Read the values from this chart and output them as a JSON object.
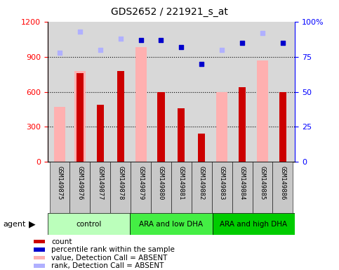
{
  "title": "GDS2652 / 221921_s_at",
  "samples": [
    "GSM149875",
    "GSM149876",
    "GSM149877",
    "GSM149878",
    "GSM149879",
    "GSM149880",
    "GSM149881",
    "GSM149882",
    "GSM149883",
    "GSM149884",
    "GSM149885",
    "GSM149886"
  ],
  "count_values": [
    null,
    760,
    490,
    780,
    null,
    600,
    460,
    240,
    null,
    640,
    null,
    600
  ],
  "value_absent": [
    470,
    780,
    null,
    null,
    980,
    null,
    null,
    null,
    600,
    null,
    870,
    null
  ],
  "percentile_light": [
    78,
    93,
    80,
    88,
    null,
    null,
    null,
    null,
    80,
    null,
    92,
    null
  ],
  "percentile_dark": [
    null,
    null,
    null,
    null,
    87,
    87,
    82,
    70,
    null,
    85,
    null,
    85
  ],
  "groups": [
    {
      "label": "control",
      "start": 0,
      "end": 4
    },
    {
      "label": "ARA and low DHA",
      "start": 4,
      "end": 8
    },
    {
      "label": "ARA and high DHA",
      "start": 8,
      "end": 12
    }
  ],
  "group_colors": [
    "#bbffbb",
    "#44ee44",
    "#00cc00"
  ],
  "ylim_left": [
    0,
    1200
  ],
  "ylim_right": [
    0,
    100
  ],
  "yticks_left": [
    0,
    300,
    600,
    900,
    1200
  ],
  "yticks_right": [
    0,
    25,
    50,
    75,
    100
  ],
  "count_color": "#cc0000",
  "absent_value_color": "#ffb0b0",
  "absent_rank_color": "#b0b0ff",
  "dark_blue_color": "#0000cc",
  "plot_bg_color": "#d8d8d8",
  "legend_items": [
    {
      "color": "#cc0000",
      "label": "count"
    },
    {
      "color": "#0000cc",
      "label": "percentile rank within the sample"
    },
    {
      "color": "#ffb0b0",
      "label": "value, Detection Call = ABSENT"
    },
    {
      "color": "#b0b0ff",
      "label": "rank, Detection Call = ABSENT"
    }
  ]
}
